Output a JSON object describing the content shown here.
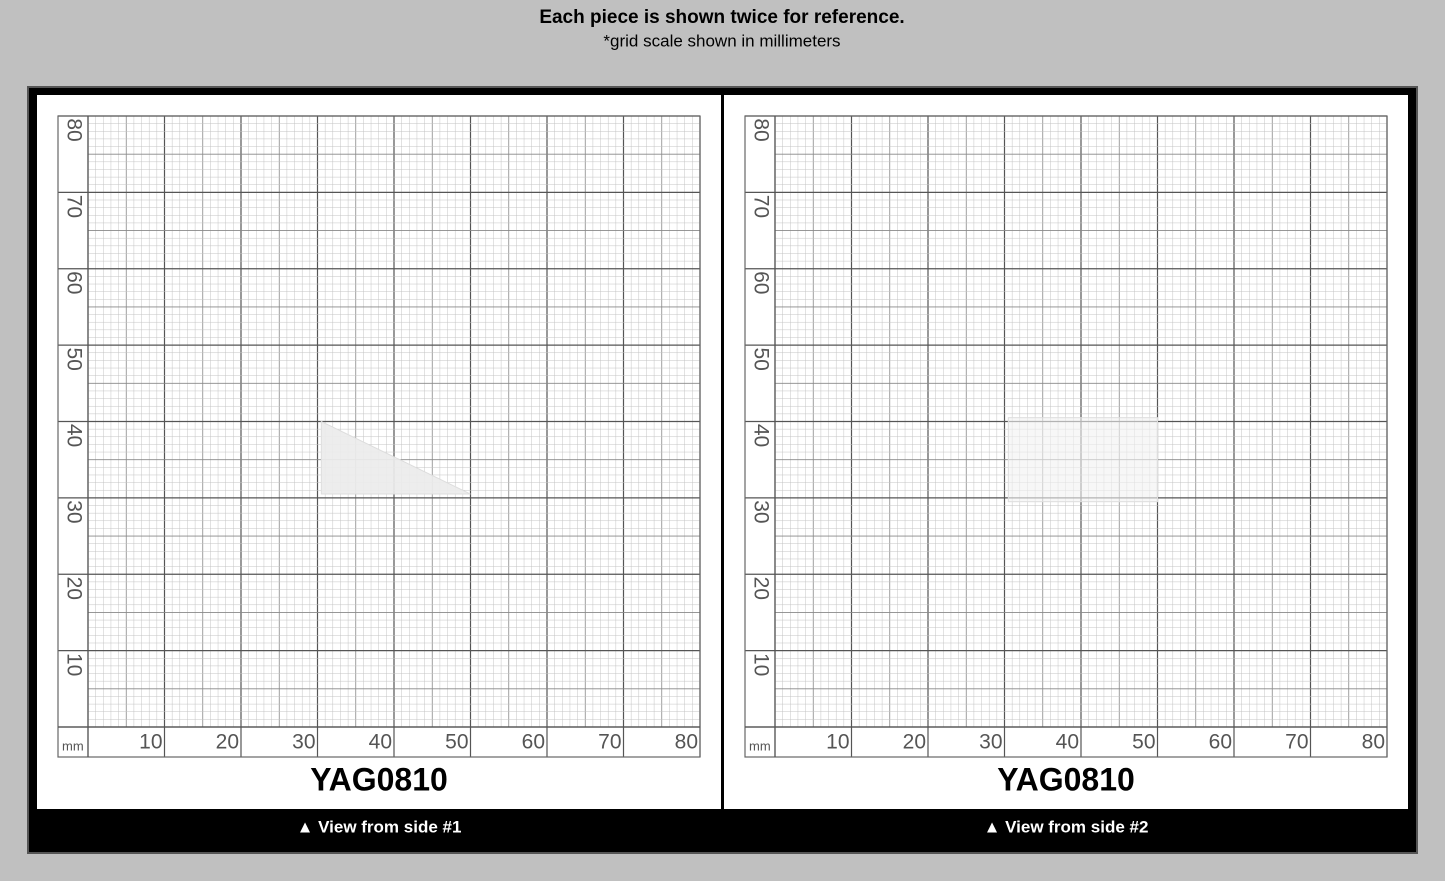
{
  "header": {
    "title": "Each piece is shown twice for reference.",
    "subtitle": "*grid scale shown in millimeters"
  },
  "grid": {
    "unit": "mm",
    "x_labels": [
      10,
      20,
      30,
      40,
      50,
      60,
      70,
      80
    ],
    "y_labels": [
      10,
      20,
      30,
      40,
      50,
      60,
      70,
      80
    ]
  },
  "panels": [
    {
      "label": "YAG0810",
      "caption": "▲ View from side #1"
    },
    {
      "label": "YAG0810",
      "caption": "▲ View from side #2"
    }
  ]
}
